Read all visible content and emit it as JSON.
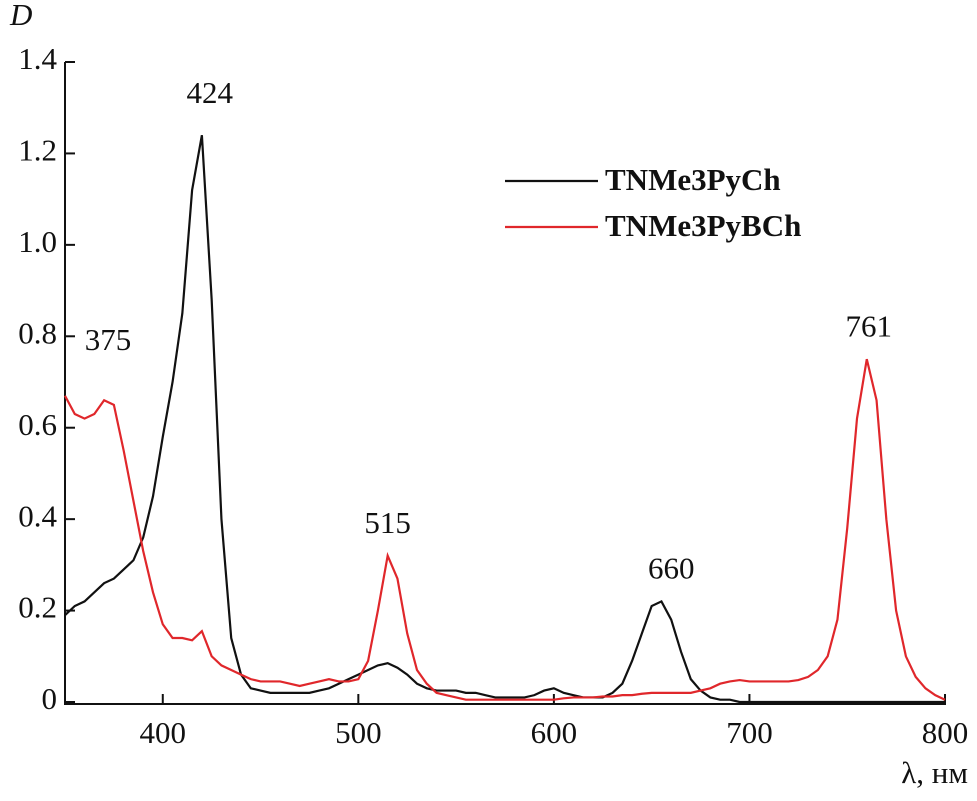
{
  "chart_data": {
    "type": "line",
    "ylabel": "D",
    "xlabel": "λ, нм",
    "xlim": [
      350,
      800
    ],
    "xticks": [
      400,
      500,
      600,
      700,
      800
    ],
    "ylim": [
      0,
      1.4
    ],
    "yticks": [
      0,
      0.2,
      0.4,
      0.6,
      0.8,
      {
        "value": 1.0,
        "label": "1.0"
      },
      1.2,
      1.4
    ],
    "legend": "upper right",
    "x": [
      350,
      355,
      360,
      365,
      370,
      375,
      380,
      385,
      390,
      395,
      400,
      405,
      410,
      415,
      420,
      425,
      430,
      435,
      440,
      445,
      450,
      455,
      460,
      465,
      470,
      475,
      480,
      485,
      490,
      495,
      500,
      505,
      510,
      515,
      520,
      525,
      530,
      535,
      540,
      545,
      550,
      555,
      560,
      565,
      570,
      575,
      580,
      585,
      590,
      595,
      600,
      605,
      610,
      615,
      620,
      625,
      630,
      635,
      640,
      645,
      650,
      655,
      660,
      665,
      670,
      675,
      680,
      685,
      690,
      695,
      700,
      705,
      710,
      715,
      720,
      725,
      730,
      735,
      740,
      745,
      750,
      755,
      760,
      765,
      770,
      775,
      780,
      785,
      790,
      795,
      800
    ],
    "series": [
      {
        "name": "TNMe3PyCh",
        "color": "#111111",
        "values": [
          0.19,
          0.21,
          0.22,
          0.24,
          0.26,
          0.27,
          0.29,
          0.31,
          0.36,
          0.45,
          0.58,
          0.7,
          0.85,
          1.12,
          1.24,
          0.88,
          0.4,
          0.14,
          0.06,
          0.03,
          0.025,
          0.02,
          0.02,
          0.02,
          0.02,
          0.02,
          0.025,
          0.03,
          0.04,
          0.05,
          0.06,
          0.07,
          0.08,
          0.085,
          0.075,
          0.06,
          0.04,
          0.03,
          0.025,
          0.025,
          0.025,
          0.02,
          0.02,
          0.015,
          0.01,
          0.01,
          0.01,
          0.01,
          0.015,
          0.025,
          0.03,
          0.02,
          0.015,
          0.01,
          0.01,
          0.01,
          0.02,
          0.04,
          0.09,
          0.15,
          0.21,
          0.22,
          0.18,
          0.11,
          0.05,
          0.025,
          0.01,
          0.005,
          0.005,
          0,
          0,
          0,
          0,
          0,
          0,
          0,
          0,
          0,
          0,
          0,
          0,
          0,
          0,
          0,
          0,
          0,
          0,
          0,
          0,
          0,
          0
        ]
      },
      {
        "name": "TNMe3PyBCh",
        "color": "#e0272b",
        "values": [
          0.67,
          0.63,
          0.62,
          0.63,
          0.66,
          0.65,
          0.55,
          0.44,
          0.33,
          0.24,
          0.17,
          0.14,
          0.14,
          0.135,
          0.155,
          0.1,
          0.08,
          0.07,
          0.06,
          0.05,
          0.045,
          0.045,
          0.045,
          0.04,
          0.035,
          0.04,
          0.045,
          0.05,
          0.045,
          0.045,
          0.05,
          0.09,
          0.2,
          0.32,
          0.27,
          0.15,
          0.07,
          0.04,
          0.02,
          0.015,
          0.01,
          0.005,
          0.005,
          0.005,
          0.005,
          0.005,
          0.005,
          0.005,
          0.005,
          0.005,
          0.005,
          0.008,
          0.01,
          0.01,
          0.01,
          0.012,
          0.012,
          0.015,
          0.015,
          0.018,
          0.02,
          0.02,
          0.02,
          0.02,
          0.02,
          0.025,
          0.03,
          0.04,
          0.045,
          0.048,
          0.045,
          0.045,
          0.045,
          0.045,
          0.045,
          0.048,
          0.055,
          0.07,
          0.1,
          0.18,
          0.38,
          0.62,
          0.75,
          0.66,
          0.4,
          0.2,
          0.1,
          0.055,
          0.03,
          0.015,
          0.005
        ]
      }
    ],
    "annotations": [
      {
        "text": "424",
        "x": 424,
        "y": 1.26
      },
      {
        "text": "375",
        "x": 372,
        "y": 0.72
      },
      {
        "text": "515",
        "x": 515,
        "y": 0.32
      },
      {
        "text": "660",
        "x": 660,
        "y": 0.22
      },
      {
        "text": "761",
        "x": 761,
        "y": 0.75
      }
    ]
  }
}
